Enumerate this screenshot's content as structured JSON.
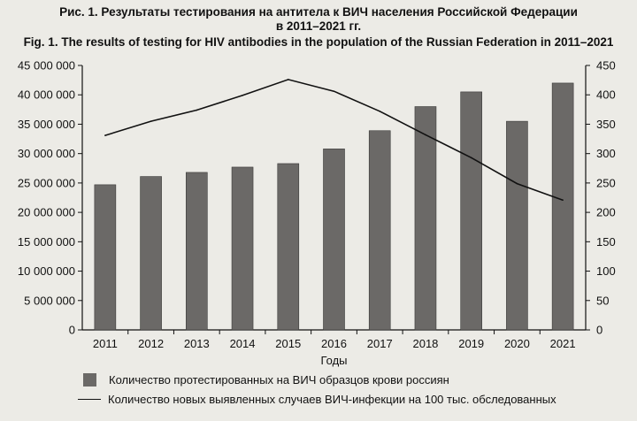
{
  "title_ru_line1": "Рис. 1. Результаты тестирования на антитела к ВИЧ населения Российской Федерации",
  "title_ru_line2": "в 2011–2021 гг.",
  "title_en": "Fig. 1. The results of testing for HIV antibodies in the population of the Russian Federation in 2011–2021",
  "colors": {
    "bar": "#6b6967",
    "line": "#111111",
    "background": "#ecebe6"
  },
  "chart_data": {
    "type": "bar",
    "categories": [
      "2011",
      "2012",
      "2013",
      "2014",
      "2015",
      "2016",
      "2017",
      "2018",
      "2019",
      "2020",
      "2021"
    ],
    "xlabel": "Годы",
    "series": [
      {
        "name": "Количество протестированных на ВИЧ образцов крови россиян",
        "type": "bar",
        "axis": "left",
        "values": [
          24700000,
          26100000,
          26800000,
          27700000,
          28300000,
          30800000,
          33900000,
          38000000,
          40500000,
          35500000,
          42000000
        ]
      },
      {
        "name": "Количество новых выявленных случаев ВИЧ-инфекции на 100 тыс. обследованных",
        "type": "line",
        "axis": "right",
        "values": [
          331,
          355,
          374,
          399,
          426,
          406,
          372,
          332,
          293,
          249,
          221
        ]
      }
    ],
    "y_left": {
      "lim": [
        0,
        45000000
      ],
      "ticks": [
        0,
        5000000,
        10000000,
        15000000,
        20000000,
        25000000,
        30000000,
        35000000,
        40000000,
        45000000
      ],
      "tick_labels": [
        "0",
        "5 000 000",
        "10 000 000",
        "15 000 000",
        "20 000 000",
        "25 000 000",
        "30 000 000",
        "35 000 000",
        "40 000 000",
        "45 000 000"
      ]
    },
    "y_right": {
      "lim": [
        0,
        450
      ],
      "ticks": [
        0,
        50,
        100,
        150,
        200,
        250,
        300,
        350,
        400,
        450
      ],
      "tick_labels": [
        "0",
        "50",
        "100",
        "150",
        "200",
        "250",
        "300",
        "350",
        "400",
        "450"
      ]
    },
    "grid": false,
    "legend_position": "bottom"
  }
}
